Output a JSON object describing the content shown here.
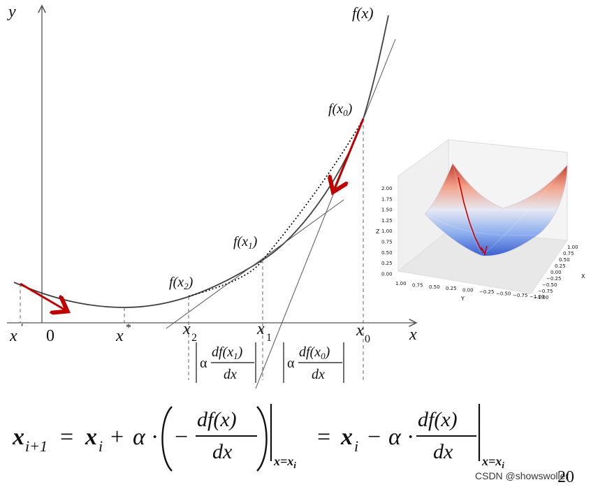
{
  "axes": {
    "y_label": "y",
    "x_label": "x"
  },
  "curve": {
    "label": "f(x)"
  },
  "points": {
    "x_prime": "x",
    "x_prime_sup": "′",
    "zero": "0",
    "x_star": "x",
    "x_star_sup": "*",
    "x2_base": "x",
    "x2_sub": "2",
    "x1_base": "x",
    "x1_sub": "1",
    "x0_base": "x",
    "x0_sub": "0",
    "f_x2": {
      "pre": "f(x",
      "sub": "2",
      "post": ")"
    },
    "f_x1": {
      "pre": "f(x",
      "sub": "1",
      "post": ")"
    },
    "f_x0": {
      "pre": "f(x",
      "sub": "0",
      "post": ")"
    }
  },
  "steps": {
    "step1": {
      "alpha": "α",
      "num": "df(x",
      "sub": "1",
      "num_post": ")",
      "den": "dx"
    },
    "step0": {
      "alpha": "α",
      "num": "df(x",
      "sub": "0",
      "num_post": ")",
      "den": "dx"
    }
  },
  "equation": {
    "lhs_base": "x",
    "lhs_sub": "i+1",
    "eq1": "=",
    "xi": "x",
    "xi_sub": "i",
    "plus": "+",
    "alpha": "α",
    "dot": "·",
    "minus": "−",
    "frac_num": "df(x)",
    "frac_den": "dx",
    "eval_at": "x=x",
    "eval_sub": "i",
    "eq2": "=",
    "minus2": "−"
  },
  "surface3d": {
    "z_axis": "Z",
    "x_axis": "X",
    "y_axis": "Y",
    "z_ticks": [
      "2.00",
      "1.75",
      "1.50",
      "1.25",
      "1.00",
      "0.75",
      "0.50",
      "0.25",
      "0.00"
    ],
    "y_ticks": [
      "1.00",
      "0.75",
      "0.50",
      "0.25",
      "0.00",
      "−0.25",
      "−0.50",
      "−0.75",
      "−1.00"
    ],
    "x_ticks": [
      "1.00",
      "0.75",
      "0.50",
      "0.25",
      "0.00",
      "−0.25",
      "−0.50",
      "−0.75",
      "−1.00"
    ],
    "colors": {
      "high": "#c0392b",
      "mid": "#e8e8f0",
      "low": "#3a5fd0",
      "path": "#cc0000"
    }
  },
  "page_number": "20",
  "watermark": "CSDN @showswoller",
  "colors": {
    "arrow": "#c00000",
    "curve": "#404040"
  }
}
